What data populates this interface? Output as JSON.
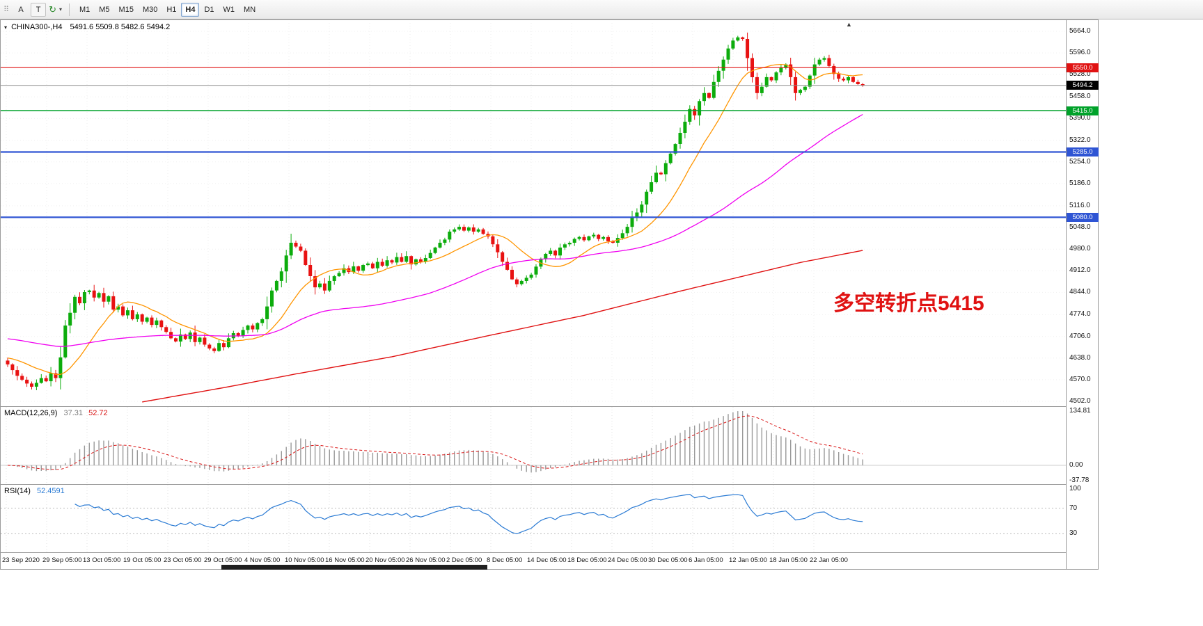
{
  "toolbar": {
    "grip_icon": "⠿",
    "buttons": [
      {
        "name": "arrow-tool",
        "label": "A"
      },
      {
        "name": "text-tool",
        "label": "T"
      }
    ],
    "cycle_icon": "↻",
    "dropdown_caret": "▾",
    "timeframes": [
      "M1",
      "M5",
      "M15",
      "M30",
      "H1",
      "H4",
      "D1",
      "W1",
      "MN"
    ],
    "active_timeframe": "H4"
  },
  "chart_header": {
    "expander": "▾",
    "symbol": "CHINA300-,H4",
    "ohlc": "5491.6 5509.8 5482.6 5494.2",
    "shift_marker": "▲"
  },
  "indicators": {
    "macd": {
      "label": "MACD(12,26,9)",
      "value_main": "37.31",
      "value_signal": "52.72",
      "axis": [
        "134.81",
        "0.00",
        "-37.78"
      ]
    },
    "rsi": {
      "label": "RSI(14)",
      "value": "52.4591",
      "axis": [
        "100",
        "70",
        "30"
      ],
      "levels": [
        70,
        30
      ]
    }
  },
  "chart_data": {
    "type": "candlestick",
    "symbol": "CHINA300-",
    "timeframe": "H4",
    "ohlc_current": {
      "open": 5491.6,
      "high": 5509.8,
      "low": 5482.6,
      "close": 5494.2
    },
    "ylim": [
      4502,
      5664
    ],
    "y_ticks": [
      "5664.0",
      "5596.0",
      "5528.0",
      "5458.0",
      "5390.0",
      "5322.0",
      "5254.0",
      "5186.0",
      "5116.0",
      "5048.0",
      "4980.0",
      "4912.0",
      "4844.0",
      "4774.0",
      "4706.0",
      "4638.0",
      "4570.0",
      "4502.0"
    ],
    "x_labels": [
      "23 Sep 2020",
      "29 Sep 05:00",
      "13 Oct 05:00",
      "19 Oct 05:00",
      "23 Oct 05:00",
      "29 Oct 05:00",
      "4 Nov 05:00",
      "10 Nov 05:00",
      "16 Nov 05:00",
      "20 Nov 05:00",
      "26 Nov 05:00",
      "2 Dec 05:00",
      "8 Dec 05:00",
      "14 Dec 05:00",
      "18 Dec 05:00",
      "24 Dec 05:00",
      "30 Dec 05:00",
      "6 Jan 05:00",
      "12 Jan 05:00",
      "18 Jan 05:00",
      "22 Jan 05:00"
    ],
    "first_open": 4630,
    "closes": [
      4618,
      4600,
      4582,
      4570,
      4558,
      4548,
      4560,
      4575,
      4565,
      4590,
      4575,
      4640,
      4740,
      4780,
      4830,
      4810,
      4845,
      4850,
      4828,
      4842,
      4815,
      4832,
      4790,
      4800,
      4772,
      4788,
      4760,
      4775,
      4752,
      4765,
      4742,
      4756,
      4735,
      4720,
      4700,
      4690,
      4712,
      4698,
      4718,
      4688,
      4702,
      4680,
      4668,
      4660,
      4685,
      4672,
      4700,
      4716,
      4708,
      4726,
      4740,
      4728,
      4748,
      4760,
      4800,
      4850,
      4880,
      4910,
      4960,
      5000,
      4988,
      4975,
      4930,
      4895,
      4860,
      4872,
      4850,
      4880,
      4895,
      4905,
      4920,
      4908,
      4926,
      4912,
      4930,
      4935,
      4920,
      4940,
      4928,
      4945,
      4938,
      4955,
      4940,
      4958,
      4932,
      4948,
      4940,
      4952,
      4968,
      4985,
      5000,
      5010,
      5035,
      5042,
      5050,
      5038,
      5048,
      5035,
      5042,
      5028,
      5020,
      4995,
      4970,
      4940,
      4915,
      4885,
      4870,
      4880,
      4890,
      4900,
      4925,
      4950,
      4965,
      4975,
      4960,
      4985,
      4995,
      5000,
      5012,
      5018,
      5008,
      5020,
      5025,
      5012,
      5018,
      5005,
      5000,
      5015,
      5030,
      5050,
      5080,
      5095,
      5120,
      5160,
      5190,
      5220,
      5215,
      5250,
      5280,
      5310,
      5345,
      5380,
      5420,
      5400,
      5445,
      5470,
      5455,
      5505,
      5540,
      5575,
      5610,
      5635,
      5645,
      5640,
      5580,
      5520,
      5470,
      5490,
      5520,
      5510,
      5535,
      5550,
      5560,
      5520,
      5470,
      5480,
      5490,
      5525,
      5560,
      5575,
      5580,
      5555,
      5530,
      5515,
      5510,
      5520,
      5505,
      5498,
      5494.2
    ],
    "candle_colors": {
      "up": "#0cac0c",
      "down": "#e81212"
    },
    "horizontal_lines": [
      {
        "price": 5550.0,
        "label": "5550.0",
        "color": "#e01212",
        "width": 1.2
      },
      {
        "price": 5415.0,
        "label": "5415.0",
        "color": "#00a22a",
        "width": 1.4
      },
      {
        "price": 5285.0,
        "label": "5285.0",
        "color": "#2f55d4",
        "width": 2.2
      },
      {
        "price": 5080.0,
        "label": "5080.0",
        "color": "#2f55d4",
        "width": 2.2
      }
    ],
    "current_price": {
      "value": 5494.2,
      "label": "5494.2",
      "line_color": "#8c8c8c",
      "label_bg": "#000000"
    },
    "moving_averages": [
      {
        "name": "fast",
        "color": "#ff9500",
        "period": 13,
        "pre": 4640
      },
      {
        "name": "mid",
        "color": "#f000f0",
        "period": 55,
        "pre": 4700
      }
    ],
    "slow_ma": {
      "color": "#e01212",
      "keypoints": [
        [
          28,
          4500
        ],
        [
          45,
          4545
        ],
        [
          60,
          4588
        ],
        [
          80,
          4642
        ],
        [
          100,
          4708
        ],
        [
          120,
          4772
        ],
        [
          140,
          4848
        ],
        [
          155,
          4902
        ],
        [
          165,
          4938
        ],
        [
          178,
          4976
        ]
      ]
    },
    "macd": {
      "fast": 12,
      "slow": 26,
      "signal": 9,
      "hist_color": "#999999",
      "signal_color": "#d91616"
    },
    "rsi": {
      "period": 14,
      "color": "#2b7bd4"
    },
    "annotation": {
      "text": "多空转折点5415",
      "color": "#e01212"
    }
  }
}
